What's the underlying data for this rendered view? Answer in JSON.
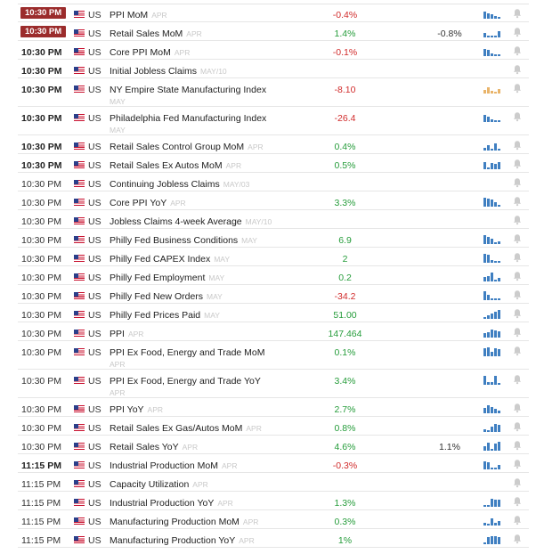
{
  "colors": {
    "negative": "#d12b2b",
    "positive": "#259c3a",
    "badge": "#9b2c2c",
    "trend_bar": "#3f7fc1",
    "trend_bar_pending": "#e9b46a",
    "bell": "#cccccc"
  },
  "icons": {
    "flag": "us-flag-icon",
    "bell": "bell-icon",
    "trend": "trend-chart-icon"
  },
  "rows": [
    {
      "time": "10:30 PM",
      "time_style": "badge",
      "country": "US",
      "event": "PPI MoM",
      "period": "APR",
      "actual": "-0.4%",
      "actual_tone": "neg",
      "previous": "",
      "trend": [
        0.8,
        0.6,
        0.5,
        0.3,
        0.2
      ],
      "trend_tone": "blue"
    },
    {
      "time": "10:30 PM",
      "time_style": "badge",
      "country": "US",
      "event": "Retail Sales MoM",
      "period": "APR",
      "actual": "1.4%",
      "actual_tone": "pos",
      "previous": "-0.8%",
      "trend": [
        0.5,
        0.2,
        0.1,
        0.2,
        0.7
      ],
      "trend_tone": "blue"
    },
    {
      "time": "10:30 PM",
      "time_style": "bold",
      "country": "US",
      "event": "Core PPI MoM",
      "period": "APR",
      "actual": "-0.1%",
      "actual_tone": "neg",
      "previous": "",
      "trend": [
        0.8,
        0.7,
        0.3,
        0.2,
        0.2
      ],
      "trend_tone": "blue"
    },
    {
      "time": "10:30 PM",
      "time_style": "bold",
      "country": "US",
      "event": "Initial Jobless Claims",
      "period": "MAY/10",
      "actual": "",
      "actual_tone": "",
      "previous": "",
      "trend": [],
      "trend_tone": ""
    },
    {
      "time": "10:30 PM",
      "time_style": "bold",
      "country": "US",
      "event": "NY Empire State Manufacturing Index",
      "period": "MAY",
      "period_wrap": true,
      "actual": "-8.10",
      "actual_tone": "neg",
      "previous": "",
      "trend": [
        0.4,
        0.7,
        0.3,
        0.2,
        0.5
      ],
      "trend_tone": "orange"
    },
    {
      "time": "10:30 PM",
      "time_style": "bold",
      "country": "US",
      "event": "Philadelphia Fed Manufacturing Index",
      "period": "MAY",
      "period_wrap": true,
      "actual": "-26.4",
      "actual_tone": "neg",
      "previous": "",
      "trend": [
        0.8,
        0.6,
        0.3,
        0.2,
        0.2
      ],
      "trend_tone": "blue"
    },
    {
      "time": "10:30 PM",
      "time_style": "bold",
      "country": "US",
      "event": "Retail Sales Control Group MoM",
      "period": "APR",
      "actual": "0.4%",
      "actual_tone": "pos",
      "previous": "",
      "trend": [
        0.3,
        0.6,
        0.2,
        0.8,
        0.2
      ],
      "trend_tone": "blue"
    },
    {
      "time": "10:30 PM",
      "time_style": "bold",
      "country": "US",
      "event": "Retail Sales Ex Autos MoM",
      "period": "APR",
      "actual": "0.5%",
      "actual_tone": "pos",
      "previous": "",
      "trend": [
        0.8,
        0.2,
        0.7,
        0.6,
        0.8
      ],
      "trend_tone": "blue"
    },
    {
      "time": "10:30 PM",
      "time_style": "",
      "country": "US",
      "event": "Continuing Jobless Claims",
      "period": "MAY/03",
      "actual": "",
      "actual_tone": "",
      "previous": "",
      "trend": [],
      "trend_tone": ""
    },
    {
      "time": "10:30 PM",
      "time_style": "",
      "country": "US",
      "event": "Core PPI YoY",
      "period": "APR",
      "actual": "3.3%",
      "actual_tone": "pos",
      "previous": "",
      "trend": [
        1.0,
        0.9,
        0.8,
        0.5,
        0.2
      ],
      "trend_tone": "blue"
    },
    {
      "time": "10:30 PM",
      "time_style": "",
      "country": "US",
      "event": "Jobless Claims 4-week Average",
      "period": "MAY/10",
      "actual": "",
      "actual_tone": "",
      "previous": "",
      "trend": [],
      "trend_tone": ""
    },
    {
      "time": "10:30 PM",
      "time_style": "",
      "country": "US",
      "event": "Philly Fed Business Conditions",
      "period": "MAY",
      "actual": "6.9",
      "actual_tone": "pos",
      "previous": "",
      "trend": [
        1.0,
        0.8,
        0.6,
        0.2,
        0.3
      ],
      "trend_tone": "blue"
    },
    {
      "time": "10:30 PM",
      "time_style": "",
      "country": "US",
      "event": "Philly Fed CAPEX Index",
      "period": "MAY",
      "actual": "2",
      "actual_tone": "pos",
      "previous": "",
      "trend": [
        1.0,
        0.9,
        0.3,
        0.2,
        0.2
      ],
      "trend_tone": "blue"
    },
    {
      "time": "10:30 PM",
      "time_style": "",
      "country": "US",
      "event": "Philly Fed Employment",
      "period": "MAY",
      "actual": "0.2",
      "actual_tone": "pos",
      "previous": "",
      "trend": [
        0.5,
        0.6,
        1.0,
        0.2,
        0.4
      ],
      "trend_tone": "blue"
    },
    {
      "time": "10:30 PM",
      "time_style": "",
      "country": "US",
      "event": "Philly Fed New Orders",
      "period": "MAY",
      "actual": "-34.2",
      "actual_tone": "neg",
      "previous": "",
      "trend": [
        1.0,
        0.6,
        0.2,
        0.2,
        0.2
      ],
      "trend_tone": "blue"
    },
    {
      "time": "10:30 PM",
      "time_style": "",
      "country": "US",
      "event": "Philly Fed Prices Paid",
      "period": "MAY",
      "actual": "51.00",
      "actual_tone": "pos",
      "previous": "",
      "trend": [
        0.2,
        0.4,
        0.6,
        0.8,
        1.0
      ],
      "trend_tone": "blue"
    },
    {
      "time": "10:30 PM",
      "time_style": "",
      "country": "US",
      "event": "PPI",
      "period": "APR",
      "actual": "147.464",
      "actual_tone": "pos",
      "previous": "",
      "trend": [
        0.5,
        0.6,
        0.9,
        0.8,
        0.7
      ],
      "trend_tone": "blue"
    },
    {
      "time": "10:30 PM",
      "time_style": "",
      "country": "US",
      "event": "PPI Ex Food, Energy and Trade MoM",
      "period": "APR",
      "period_wrap": true,
      "actual": "0.1%",
      "actual_tone": "pos",
      "previous": "",
      "trend": [
        0.9,
        1.0,
        0.5,
        0.9,
        0.8
      ],
      "trend_tone": "blue"
    },
    {
      "time": "10:30 PM",
      "time_style": "",
      "country": "US",
      "event": "PPI Ex Food, Energy and Trade YoY",
      "period": "APR",
      "period_wrap": true,
      "actual": "3.4%",
      "actual_tone": "pos",
      "previous": "",
      "trend": [
        1.0,
        0.3,
        0.3,
        1.0,
        0.2
      ],
      "trend_tone": "blue"
    },
    {
      "time": "10:30 PM",
      "time_style": "",
      "country": "US",
      "event": "PPI YoY",
      "period": "APR",
      "actual": "2.7%",
      "actual_tone": "pos",
      "previous": "",
      "trend": [
        0.6,
        0.9,
        0.7,
        0.5,
        0.3
      ],
      "trend_tone": "blue"
    },
    {
      "time": "10:30 PM",
      "time_style": "",
      "country": "US",
      "event": "Retail Sales Ex Gas/Autos MoM",
      "period": "APR",
      "actual": "0.8%",
      "actual_tone": "pos",
      "previous": "",
      "trend": [
        0.3,
        0.2,
        0.6,
        0.9,
        0.8
      ],
      "trend_tone": "blue"
    },
    {
      "time": "10:30 PM",
      "time_style": "",
      "country": "US",
      "event": "Retail Sales YoY",
      "period": "APR",
      "actual": "4.6%",
      "actual_tone": "pos",
      "previous": "1.1%",
      "trend": [
        0.5,
        0.9,
        0.2,
        0.8,
        1.0
      ],
      "trend_tone": "blue"
    },
    {
      "time": "11:15 PM",
      "time_style": "bold",
      "country": "US",
      "event": "Industrial Production MoM",
      "period": "APR",
      "actual": "-0.3%",
      "actual_tone": "neg",
      "previous": "",
      "trend": [
        0.9,
        0.8,
        0.2,
        0.2,
        0.5
      ],
      "trend_tone": "blue"
    },
    {
      "time": "11:15 PM",
      "time_style": "",
      "country": "US",
      "event": "Capacity Utilization",
      "period": "APR",
      "actual": "",
      "actual_tone": "",
      "previous": "",
      "trend": [],
      "trend_tone": ""
    },
    {
      "time": "11:15 PM",
      "time_style": "",
      "country": "US",
      "event": "Industrial Production YoY",
      "period": "APR",
      "actual": "1.3%",
      "actual_tone": "pos",
      "previous": "",
      "trend": [
        0.2,
        0.2,
        0.9,
        0.8,
        0.8
      ],
      "trend_tone": "blue"
    },
    {
      "time": "11:15 PM",
      "time_style": "",
      "country": "US",
      "event": "Manufacturing Production MoM",
      "period": "APR",
      "actual": "0.3%",
      "actual_tone": "pos",
      "previous": "",
      "trend": [
        0.3,
        0.2,
        0.8,
        0.3,
        0.5
      ],
      "trend_tone": "blue"
    },
    {
      "time": "11:15 PM",
      "time_style": "",
      "country": "US",
      "event": "Manufacturing Production YoY",
      "period": "APR",
      "actual": "1%",
      "actual_tone": "pos",
      "previous": "",
      "trend": [
        0.2,
        0.8,
        0.9,
        0.9,
        0.8
      ],
      "trend_tone": "blue"
    }
  ]
}
